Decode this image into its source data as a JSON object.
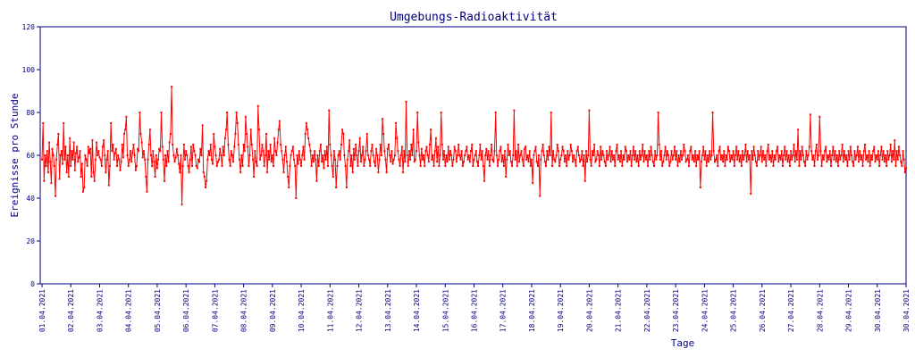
{
  "chart_data": {
    "type": "line",
    "title": "Umgebungs-Radioaktivität",
    "xlabel": "Tage",
    "ylabel": "Ereignisse pro Stunde",
    "ylim": [
      0,
      120
    ],
    "yticks": [
      0,
      20,
      40,
      60,
      80,
      100,
      120
    ],
    "xticks": [
      "01.04.2021",
      "02.04.2021",
      "03.04.2021",
      "04.04.2021",
      "05.04.2021",
      "06.04.2021",
      "07.04.2021",
      "08.04.2021",
      "09.04.2021",
      "10.04.2021",
      "11.04.2021",
      "12.04.2021",
      "13.04.2021",
      "14.04.2021",
      "15.04.2021",
      "16.04.2021",
      "17.04.2021",
      "18.04.2021",
      "19.04.2021",
      "20.04.2021",
      "21.04.2021",
      "22.04.2021",
      "23.04.2021",
      "24.04.2021",
      "25.04.2021",
      "26.04.2021",
      "27.04.2021",
      "28.04.2021",
      "29.04.2021",
      "30.04.2021",
      "30.04.2021"
    ],
    "grid": false,
    "colors": {
      "series": "#ff0000",
      "axes": "#000080",
      "text": "#000080"
    },
    "series": [
      {
        "values": [
          58,
          75,
          48,
          60,
          55,
          62,
          52,
          66,
          57,
          47,
          63,
          60,
          55,
          41,
          58,
          65,
          70,
          49,
          60,
          62,
          56,
          75,
          58,
          64,
          52,
          60,
          50,
          68,
          55,
          62,
          58,
          66,
          53,
          61,
          64,
          57,
          59,
          62,
          50,
          56,
          43,
          45,
          60,
          58,
          55,
          64,
          61,
          63,
          50,
          67,
          52,
          48,
          58,
          66,
          60,
          62,
          59,
          58,
          55,
          64,
          67,
          60,
          52,
          58,
          62,
          46,
          55,
          75,
          62,
          65,
          58,
          61,
          63,
          55,
          60,
          58,
          53,
          57,
          65,
          59,
          70,
          72,
          78,
          60,
          55,
          58,
          62,
          57,
          61,
          65,
          60,
          53,
          55,
          63,
          62,
          80,
          70,
          66,
          59,
          62,
          58,
          50,
          43,
          58,
          65,
          72,
          60,
          55,
          62,
          57,
          50,
          60,
          54,
          58,
          63,
          62,
          80,
          64,
          58,
          48,
          60,
          55,
          62,
          57,
          66,
          70,
          92,
          65,
          60,
          57,
          59,
          63,
          60,
          56,
          52,
          60,
          37,
          55,
          65,
          58,
          62,
          60,
          55,
          52,
          58,
          64,
          55,
          65,
          62,
          60,
          55,
          54,
          58,
          57,
          63,
          60,
          74,
          52,
          50,
          45,
          48,
          58,
          62,
          60,
          65,
          58,
          56,
          70,
          64,
          60,
          55,
          57,
          58,
          63,
          60,
          55,
          64,
          60,
          68,
          72,
          80,
          65,
          58,
          55,
          62,
          60,
          57,
          64,
          70,
          80,
          75,
          65,
          58,
          52,
          60,
          55,
          65,
          62,
          78,
          70,
          64,
          55,
          60,
          72,
          65,
          58,
          50,
          62,
          57,
          55,
          83,
          72,
          58,
          60,
          65,
          62,
          55,
          60,
          70,
          52,
          62,
          58,
          65,
          57,
          60,
          55,
          68,
          62,
          60,
          66,
          72,
          76,
          65,
          62,
          58,
          52,
          60,
          64,
          57,
          50,
          45,
          55,
          60,
          62,
          64,
          58,
          55,
          40,
          60,
          56,
          62,
          58,
          55,
          60,
          64,
          58,
          70,
          75,
          72,
          68,
          65,
          62,
          55,
          60,
          57,
          62,
          58,
          48,
          60,
          55,
          62,
          65,
          57,
          60,
          54,
          62,
          58,
          64,
          55,
          81,
          65,
          60,
          55,
          50,
          62,
          58,
          45,
          55,
          60,
          62,
          58,
          65,
          72,
          70,
          60,
          55,
          45,
          58,
          62,
          67,
          55,
          60,
          52,
          63,
          58,
          65,
          60,
          55,
          62,
          68,
          57,
          60,
          64,
          55,
          58,
          62,
          70,
          60,
          58,
          55,
          62,
          65,
          60,
          57,
          55,
          63,
          60,
          52,
          58,
          65,
          60,
          77,
          70,
          62,
          58,
          52,
          63,
          65,
          60,
          57,
          62,
          56,
          58,
          60,
          75,
          68,
          62,
          58,
          55,
          60,
          64,
          52,
          62,
          57,
          85,
          60,
          55,
          62,
          58,
          65,
          60,
          72,
          57,
          58,
          62,
          80,
          66,
          60,
          55,
          63,
          58,
          60,
          55,
          62,
          64,
          60,
          57,
          65,
          72,
          58,
          60,
          55,
          62,
          68,
          57,
          64,
          55,
          60,
          80,
          65,
          58,
          62,
          55,
          60,
          57,
          64,
          58,
          62,
          60,
          55,
          58,
          64,
          62,
          57,
          60,
          65,
          60,
          58,
          62,
          55,
          57,
          60,
          62,
          64,
          58,
          60,
          57,
          62,
          65,
          55,
          58,
          60,
          62,
          57,
          55,
          60,
          65,
          58,
          62,
          55,
          48,
          60,
          63,
          58,
          62,
          55,
          60,
          65,
          58,
          57,
          62,
          80,
          60,
          55,
          58,
          62,
          64,
          57,
          60,
          55,
          62,
          50,
          58,
          65,
          60,
          62,
          57,
          55,
          60,
          81,
          58,
          62,
          55,
          65,
          57,
          60,
          62,
          58,
          55,
          63,
          64,
          58,
          60,
          57,
          62,
          55,
          58,
          47,
          60,
          62,
          64,
          57,
          55,
          60,
          41,
          58,
          62,
          65,
          60,
          57,
          55,
          62,
          58,
          64,
          60,
          80,
          55,
          62,
          58,
          57,
          60,
          65,
          62,
          55,
          58,
          60,
          64,
          62,
          57,
          60,
          55,
          62,
          58,
          60,
          65,
          62,
          57,
          60,
          58,
          55,
          62,
          64,
          60,
          57,
          58,
          62,
          55,
          60,
          48,
          62,
          57,
          60,
          81,
          58,
          55,
          62,
          60,
          65,
          57,
          58,
          62,
          60,
          55,
          64,
          58,
          62,
          60,
          57,
          55,
          62,
          58,
          60,
          64,
          57,
          62,
          58,
          60,
          55,
          62,
          65,
          58,
          60,
          57,
          62,
          55,
          60,
          58,
          64,
          62,
          57,
          60,
          58,
          62,
          55,
          60,
          64,
          58,
          62,
          57,
          60,
          55,
          62,
          58,
          60,
          65,
          57,
          62,
          58,
          60,
          55,
          62,
          58,
          64,
          60,
          57,
          55,
          62,
          58,
          60,
          80,
          65,
          58,
          62,
          55,
          57,
          60,
          64,
          58,
          62,
          60,
          55,
          57,
          62,
          58,
          60,
          64,
          58,
          62,
          55,
          60,
          57,
          62,
          58,
          60,
          65,
          62,
          57,
          58,
          60,
          55,
          62,
          64,
          58,
          60,
          57,
          62,
          55,
          60,
          58,
          62,
          45,
          57,
          60,
          64,
          58,
          62,
          55,
          60,
          57,
          62,
          58,
          60,
          80,
          62,
          57,
          58,
          60,
          55,
          62,
          64,
          58,
          60,
          57,
          62,
          55,
          60,
          58,
          64,
          62,
          57,
          60,
          58,
          62,
          55,
          60,
          64,
          58,
          62,
          57,
          60,
          55,
          62,
          58,
          60,
          65,
          57,
          62,
          58,
          60,
          42,
          62,
          58,
          64,
          60,
          57,
          55,
          62,
          58,
          60,
          64,
          57,
          62,
          58,
          60,
          55,
          62,
          65,
          58,
          60,
          57,
          62,
          55,
          60,
          58,
          62,
          64,
          57,
          60,
          58,
          62,
          55,
          60,
          64,
          58,
          62,
          57,
          60,
          55,
          62,
          58,
          60,
          65,
          57,
          62,
          58,
          72,
          55,
          62,
          58,
          64,
          60,
          57,
          55,
          62,
          58,
          60,
          64,
          79,
          62,
          58,
          60,
          55,
          62,
          65,
          58,
          60,
          78,
          62,
          55,
          60,
          58,
          62,
          64,
          57,
          60,
          58,
          62,
          55,
          60,
          64,
          58,
          62,
          57,
          60,
          55,
          62,
          58,
          60,
          65,
          57,
          62,
          58,
          60,
          55,
          62,
          58,
          64,
          60,
          57,
          55,
          62,
          58,
          60,
          64,
          57,
          62,
          58,
          60,
          55,
          62,
          65,
          58,
          60,
          57,
          62,
          55,
          60,
          58,
          62,
          64,
          57,
          60,
          58,
          62,
          55,
          60,
          64,
          58,
          62,
          57,
          60,
          55,
          62,
          58,
          60,
          65,
          57,
          62,
          58,
          67,
          55,
          62,
          58,
          64,
          60,
          57,
          55,
          62,
          58,
          52,
          54
        ]
      }
    ]
  }
}
